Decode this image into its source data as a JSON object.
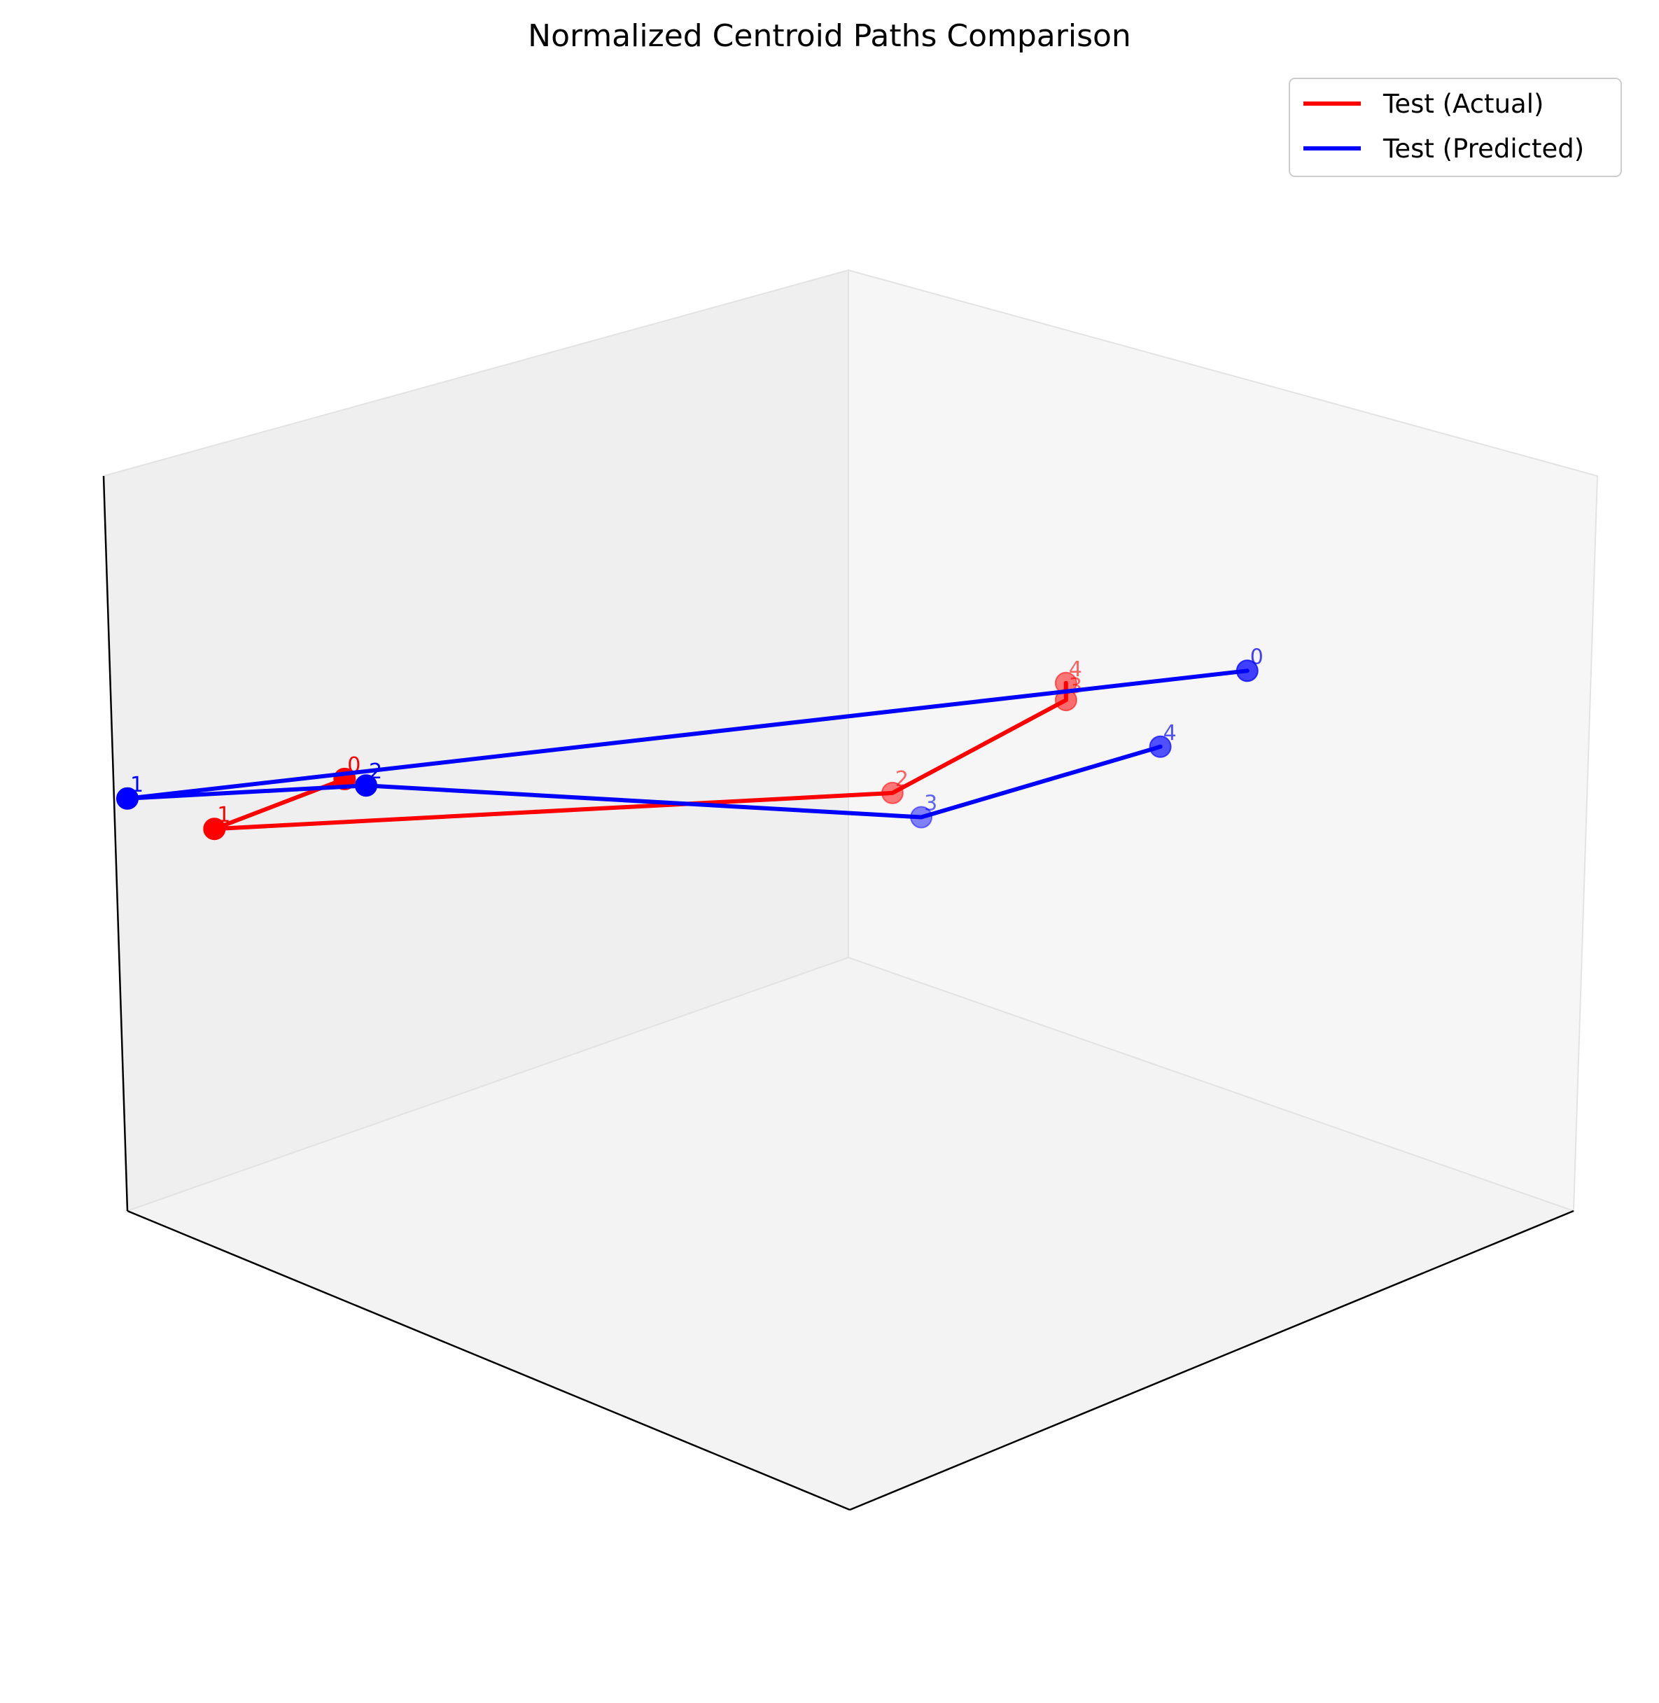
{
  "chart_data": {
    "type": "line",
    "projection": "3d",
    "title": "Normalized Centroid Paths Comparison",
    "xlabel": "",
    "ylabel": "",
    "zlabel": "",
    "grid": false,
    "ticks_visible": false,
    "legend_position": "top-right",
    "series": [
      {
        "name": "Test (Actual)",
        "color": "#ff0000",
        "point_labels": [
          "0",
          "1",
          "2",
          "3",
          "4"
        ],
        "x": [
          0.92,
          1.0,
          0.12,
          0.02,
          0.0
        ],
        "y": [
          0.22,
          0.12,
          0.18,
          0.32,
          0.3
        ],
        "z": [
          0.68,
          0.6,
          0.35,
          0.5,
          0.51
        ]
      },
      {
        "name": "Test (Predicted)",
        "color": "#0000ff",
        "point_labels": [
          "0",
          "1",
          "2",
          "3",
          "4"
        ],
        "x": [
          0.0,
          1.0,
          0.85,
          0.08,
          0.02
        ],
        "y": [
          0.55,
          0.0,
          0.18,
          0.18,
          0.45
        ],
        "z": [
          0.62,
          0.6,
          0.63,
          0.3,
          0.48
        ]
      }
    ]
  }
}
